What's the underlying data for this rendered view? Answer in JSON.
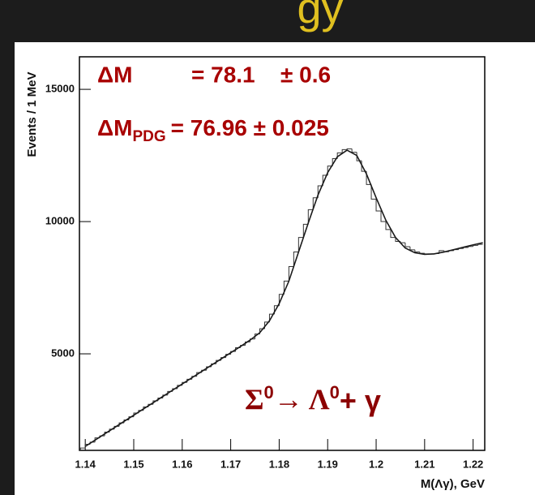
{
  "header": {
    "title_fragment": "gy"
  },
  "chart_data": {
    "type": "histogram",
    "y_label": "Events / 1 MeV",
    "x_label": "M(Λγ), GeV",
    "annotations": {
      "delta_m": {
        "symbol": "ΔM",
        "value": "= 78.1",
        "error": "± 0.6"
      },
      "delta_m_pdg": {
        "symbol": "ΔM",
        "subscript": "PDG",
        "value": "= 76.96 ± 0.025"
      },
      "decay": [
        "Σ",
        "0",
        "→ Λ",
        "0",
        "+ γ"
      ]
    },
    "xlim": [
      1.1388,
      1.2224
    ],
    "ylim": [
      1350,
      16230
    ],
    "xticks": [
      1.14,
      1.15,
      1.16,
      1.17,
      1.18,
      1.19,
      1.2,
      1.21,
      1.22
    ],
    "yticks": [
      5000,
      10000,
      15000
    ],
    "color": "#333333",
    "bins": [
      1.139,
      1.14,
      1.141,
      1.142,
      1.143,
      1.144,
      1.145,
      1.146,
      1.147,
      1.148,
      1.149,
      1.15,
      1.151,
      1.152,
      1.153,
      1.154,
      1.155,
      1.156,
      1.157,
      1.158,
      1.159,
      1.16,
      1.161,
      1.162,
      1.163,
      1.164,
      1.165,
      1.166,
      1.167,
      1.168,
      1.169,
      1.17,
      1.171,
      1.172,
      1.173,
      1.174,
      1.175,
      1.176,
      1.177,
      1.178,
      1.179,
      1.18,
      1.181,
      1.182,
      1.183,
      1.184,
      1.185,
      1.186,
      1.187,
      1.188,
      1.189,
      1.19,
      1.191,
      1.192,
      1.193,
      1.194,
      1.195,
      1.196,
      1.197,
      1.198,
      1.199,
      1.2,
      1.201,
      1.202,
      1.203,
      1.204,
      1.205,
      1.206,
      1.207,
      1.208,
      1.209,
      1.21,
      1.211,
      1.212,
      1.213,
      1.214,
      1.215,
      1.216,
      1.217,
      1.218,
      1.219,
      1.22,
      1.221,
      1.222
    ],
    "counts": [
      1440,
      1580,
      1660,
      1820,
      1900,
      2040,
      2150,
      2260,
      2390,
      2500,
      2620,
      2760,
      2860,
      2990,
      3090,
      3220,
      3330,
      3440,
      3580,
      3680,
      3810,
      3920,
      4040,
      4150,
      4290,
      4380,
      4510,
      4620,
      4750,
      4860,
      4980,
      5090,
      5230,
      5320,
      5450,
      5560,
      5750,
      5950,
      6200,
      6500,
      6820,
      7250,
      7750,
      8300,
      8850,
      9400,
      9900,
      10450,
      10900,
      11350,
      11750,
      12100,
      12380,
      12600,
      12720,
      12750,
      12620,
      12300,
      11900,
      11400,
      10850,
      10400,
      10000,
      9700,
      9400,
      9250,
      9200,
      9050,
      8930,
      8850,
      8800,
      8780,
      8770,
      8790,
      8900,
      8860,
      8900,
      8940,
      8980,
      9020,
      9060,
      9100,
      9140
    ],
    "fit": {
      "color": "#1a1a1a",
      "x": [
        1.14,
        1.142,
        1.144,
        1.146,
        1.148,
        1.15,
        1.152,
        1.154,
        1.156,
        1.158,
        1.16,
        1.162,
        1.164,
        1.166,
        1.168,
        1.17,
        1.172,
        1.174,
        1.176,
        1.178,
        1.18,
        1.182,
        1.184,
        1.186,
        1.188,
        1.19,
        1.192,
        1.194,
        1.196,
        1.198,
        1.2,
        1.202,
        1.204,
        1.206,
        1.208,
        1.21,
        1.212,
        1.214,
        1.216,
        1.218,
        1.22,
        1.222
      ],
      "values": [
        1500,
        1736,
        1972,
        2208,
        2444,
        2680,
        2916,
        3152,
        3388,
        3624,
        3860,
        4096,
        4332,
        4568,
        4804,
        5040,
        5276,
        5520,
        5800,
        6250,
        6900,
        7750,
        8850,
        9950,
        11000,
        11850,
        12450,
        12700,
        12500,
        11800,
        10900,
        10050,
        9400,
        9000,
        8820,
        8760,
        8780,
        8850,
        8940,
        9030,
        9120,
        9200
      ]
    }
  }
}
